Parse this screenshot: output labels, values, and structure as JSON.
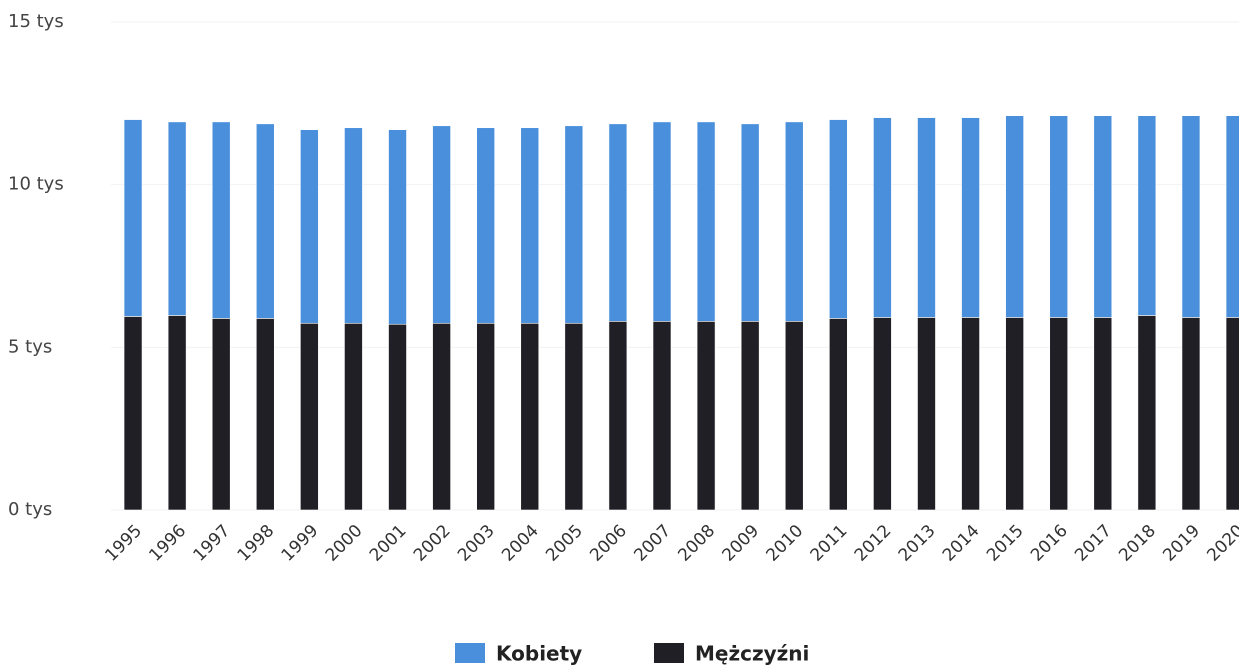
{
  "chart_data": {
    "type": "bar",
    "stacked": true,
    "categories": [
      "1995",
      "1996",
      "1997",
      "1998",
      "1999",
      "2000",
      "2001",
      "2002",
      "2003",
      "2004",
      "2005",
      "2006",
      "2007",
      "2008",
      "2009",
      "2010",
      "2011",
      "2012",
      "2013",
      "2014",
      "2015",
      "2016",
      "2017",
      "2018",
      "2019",
      "2020"
    ],
    "series": [
      {
        "name": "Kobiety",
        "color": "#4a8fdc",
        "values": [
          6050,
          5950,
          6040,
          5980,
          5950,
          6010,
          5980,
          6070,
          6010,
          6010,
          6070,
          6070,
          6130,
          6130,
          6070,
          6130,
          6110,
          6140,
          6140,
          6140,
          6200,
          6200,
          6200,
          6140,
          6200,
          6200
        ]
      },
      {
        "name": "Mężczyźni",
        "color": "#1f1f25",
        "values": [
          5950,
          5980,
          5890,
          5890,
          5740,
          5740,
          5710,
          5740,
          5740,
          5740,
          5740,
          5800,
          5800,
          5800,
          5800,
          5800,
          5890,
          5920,
          5920,
          5920,
          5920,
          5920,
          5920,
          5980,
          5920,
          5920
        ]
      }
    ],
    "ylim": [
      0,
      15000
    ],
    "yticks": [
      {
        "value": 0,
        "label": "0 tys"
      },
      {
        "value": 5000,
        "label": "5 tys"
      },
      {
        "value": 10000,
        "label": "10 tys"
      },
      {
        "value": 15000,
        "label": "15 tys"
      }
    ],
    "grid": true,
    "legend": "bottom"
  }
}
